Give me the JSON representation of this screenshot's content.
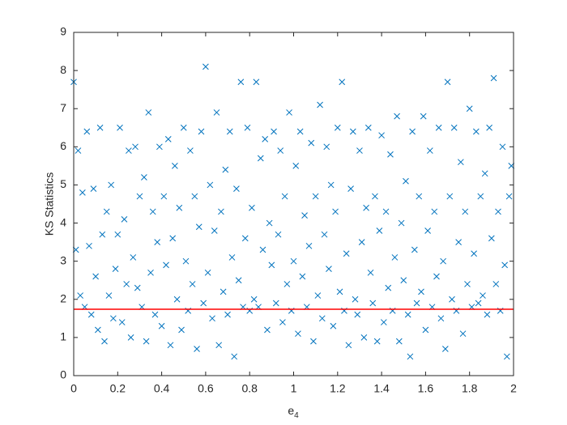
{
  "chart_data": {
    "type": "scatter",
    "xlabel": {
      "base": "e",
      "subscript": "4"
    },
    "ylabel": "KS Statistics",
    "xlim": [
      0,
      2
    ],
    "ylim": [
      0,
      9
    ],
    "xticks": [
      0,
      0.2,
      0.4,
      0.6,
      0.8,
      1,
      1.2,
      1.4,
      1.6,
      1.8,
      2
    ],
    "yticks": [
      0,
      1,
      2,
      3,
      4,
      5,
      6,
      7,
      8,
      9
    ],
    "grid": false,
    "marker": "x",
    "color": "#0072bd",
    "reference_line": {
      "value": 1.74,
      "color": "#ff0000"
    },
    "x": [
      0,
      0.01,
      0.02,
      0.03,
      0.04,
      0.05,
      0.06,
      0.07,
      0.08,
      0.09,
      0.1,
      0.11,
      0.12,
      0.13,
      0.14,
      0.15,
      0.16,
      0.17,
      0.18,
      0.19,
      0.2,
      0.21,
      0.22,
      0.23,
      0.24,
      0.25,
      0.26,
      0.27,
      0.28,
      0.29,
      0.3,
      0.31,
      0.32,
      0.33,
      0.34,
      0.35,
      0.36,
      0.37,
      0.38,
      0.39,
      0.4,
      0.41,
      0.42,
      0.43,
      0.44,
      0.45,
      0.46,
      0.47,
      0.48,
      0.49,
      0.5,
      0.51,
      0.52,
      0.53,
      0.54,
      0.55,
      0.56,
      0.57,
      0.58,
      0.59,
      0.6,
      0.61,
      0.62,
      0.63,
      0.64,
      0.65,
      0.66,
      0.67,
      0.68,
      0.69,
      0.7,
      0.71,
      0.72,
      0.73,
      0.74,
      0.75,
      0.76,
      0.77,
      0.78,
      0.79,
      0.8,
      0.81,
      0.82,
      0.83,
      0.84,
      0.85,
      0.86,
      0.87,
      0.88,
      0.89,
      0.9,
      0.91,
      0.92,
      0.93,
      0.94,
      0.95,
      0.96,
      0.97,
      0.98,
      0.99,
      1,
      1.01,
      1.02,
      1.03,
      1.04,
      1.05,
      1.06,
      1.07,
      1.08,
      1.09,
      1.1,
      1.11,
      1.12,
      1.13,
      1.14,
      1.15,
      1.16,
      1.17,
      1.18,
      1.19,
      1.2,
      1.21,
      1.22,
      1.23,
      1.24,
      1.25,
      1.26,
      1.27,
      1.28,
      1.29,
      1.3,
      1.31,
      1.32,
      1.33,
      1.34,
      1.35,
      1.36,
      1.37,
      1.38,
      1.39,
      1.4,
      1.41,
      1.42,
      1.43,
      1.44,
      1.45,
      1.46,
      1.47,
      1.48,
      1.49,
      1.5,
      1.51,
      1.52,
      1.53,
      1.54,
      1.55,
      1.56,
      1.57,
      1.58,
      1.59,
      1.6,
      1.61,
      1.62,
      1.63,
      1.64,
      1.65,
      1.66,
      1.67,
      1.68,
      1.69,
      1.7,
      1.71,
      1.72,
      1.73,
      1.74,
      1.75,
      1.76,
      1.77,
      1.78,
      1.79,
      1.8,
      1.81,
      1.82,
      1.83,
      1.84,
      1.85,
      1.86,
      1.87,
      1.88,
      1.89,
      1.9,
      1.91,
      1.92,
      1.93,
      1.94,
      1.95,
      1.96,
      1.97,
      1.98,
      1.99
    ],
    "values": [
      7.7,
      3.3,
      5.9,
      2.1,
      4.8,
      1.8,
      6.4,
      3.4,
      1.6,
      4.9,
      2.6,
      1.2,
      6.5,
      3.7,
      0.9,
      4.3,
      2.1,
      5.0,
      1.5,
      2.8,
      3.7,
      6.5,
      1.4,
      4.1,
      2.4,
      5.9,
      1.0,
      3.1,
      6.0,
      2.3,
      4.7,
      1.8,
      5.2,
      0.9,
      6.9,
      2.7,
      4.3,
      1.6,
      3.5,
      6.0,
      1.3,
      4.7,
      2.9,
      6.2,
      0.8,
      3.6,
      5.5,
      2.0,
      4.4,
      1.2,
      6.5,
      3.0,
      1.7,
      5.9,
      2.4,
      4.7,
      0.7,
      3.9,
      6.4,
      1.9,
      8.1,
      2.7,
      5.0,
      1.5,
      3.8,
      6.9,
      0.8,
      4.3,
      2.2,
      5.4,
      1.6,
      6.4,
      3.1,
      0.5,
      4.9,
      2.5,
      7.7,
      1.8,
      3.6,
      6.5,
      1.7,
      4.4,
      2.0,
      7.7,
      1.8,
      5.7,
      3.3,
      6.2,
      1.2,
      4.0,
      2.9,
      6.4,
      1.9,
      3.7,
      5.9,
      1.4,
      4.7,
      2.4,
      6.9,
      1.7,
      3.0,
      5.5,
      1.1,
      6.4,
      2.6,
      4.2,
      1.8,
      3.4,
      6.1,
      0.9,
      4.7,
      2.1,
      7.1,
      1.5,
      3.7,
      6.0,
      2.8,
      5.0,
      1.3,
      4.3,
      6.5,
      2.2,
      7.7,
      1.7,
      3.2,
      0.8,
      4.9,
      6.4,
      2.0,
      1.6,
      5.9,
      3.5,
      1.0,
      4.4,
      6.5,
      2.7,
      1.9,
      4.7,
      0.9,
      3.8,
      6.3,
      1.4,
      4.3,
      2.3,
      5.8,
      1.7,
      3.1,
      6.8,
      0.9,
      4.0,
      2.5,
      5.1,
      1.6,
      0.5,
      6.4,
      3.3,
      1.9,
      4.7,
      2.2,
      6.8,
      1.2,
      3.8,
      5.9,
      1.8,
      4.3,
      2.6,
      6.5,
      1.5,
      3.0,
      0.7,
      7.7,
      4.7,
      2.0,
      6.5,
      1.7,
      3.5,
      5.6,
      1.1,
      4.3,
      2.4,
      7.0,
      1.8,
      3.2,
      6.4,
      1.9,
      4.7,
      2.1,
      5.3,
      1.6,
      6.5,
      3.6,
      7.8,
      2.4,
      4.3,
      1.7,
      6.0,
      2.9,
      0.5,
      4.7,
      5.5
    ]
  }
}
